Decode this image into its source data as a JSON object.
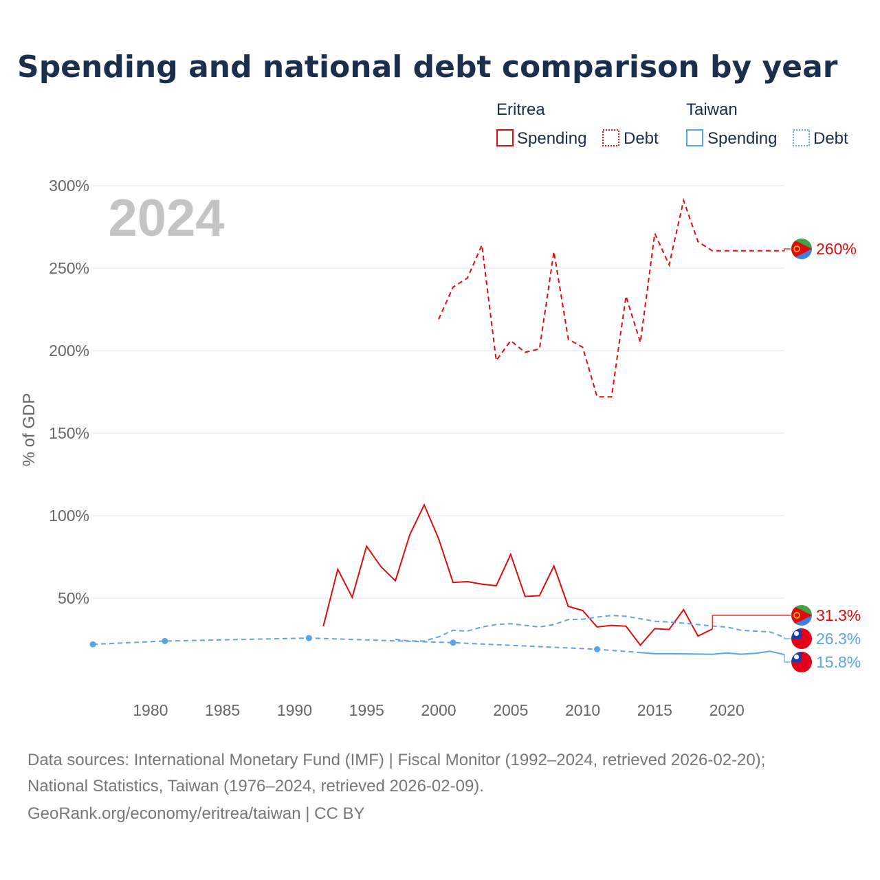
{
  "chart_data": {
    "type": "line",
    "title": "Spending and national debt comparison by year",
    "year_watermark": "2024",
    "ylabel": "% of GDP",
    "xlim": [
      1976,
      2024
    ],
    "ylim": [
      0,
      300
    ],
    "y_ticks": [
      50,
      100,
      150,
      200,
      250,
      300
    ],
    "y_tick_labels": [
      "50%",
      "100%",
      "150%",
      "200%",
      "250%",
      "300%"
    ],
    "x_ticks": [
      1980,
      1985,
      1990,
      1995,
      2000,
      2005,
      2010,
      2015,
      2020
    ],
    "x_tick_labels": [
      "1980",
      "1985",
      "1990",
      "1995",
      "2000",
      "2005",
      "2010",
      "2015",
      "2020"
    ],
    "legend": {
      "groups": [
        {
          "country": "Eritrea",
          "color": "#e00b0b",
          "items": [
            "Spending",
            "Debt"
          ]
        },
        {
          "country": "Taiwan",
          "color": "#5ba4e6",
          "items": [
            "Spending",
            "Debt"
          ]
        }
      ]
    },
    "series": [
      {
        "name": "Eritrea Debt",
        "country": "Eritrea",
        "kind": "Debt",
        "color": "#e00b0b",
        "dash": "dashed",
        "x": [
          2000,
          2001,
          2002,
          2003,
          2004,
          2005,
          2006,
          2007,
          2008,
          2009,
          2010,
          2011,
          2012,
          2013,
          2014,
          2015,
          2016,
          2017,
          2018,
          2019,
          2020,
          2021,
          2022,
          2023,
          2024
        ],
        "values": [
          219,
          238.5,
          244,
          264,
          194,
          206,
          199,
          201,
          260,
          207,
          202,
          172,
          172,
          233,
          205,
          271,
          252,
          291,
          266,
          260.5,
          260.5,
          260.5,
          260.5,
          260.5,
          260.5
        ],
        "end_label": "260%",
        "end_value": 260
      },
      {
        "name": "Eritrea Spending",
        "country": "Eritrea",
        "kind": "Spending",
        "color": "#e00b0b",
        "dash": "solid",
        "x": [
          1992,
          1993,
          1994,
          1995,
          1996,
          1997,
          1998,
          1999,
          2000,
          2001,
          2002,
          2003,
          2004,
          2005,
          2006,
          2007,
          2008,
          2009,
          2010,
          2011,
          2012,
          2013,
          2014,
          2015,
          2016,
          2017,
          2018,
          2019
        ],
        "values": [
          33,
          67.5,
          50.5,
          81.5,
          69,
          60.5,
          88.5,
          106.5,
          86,
          59.5,
          60,
          58.5,
          57.5,
          76.5,
          51,
          51.5,
          69.5,
          45,
          42.5,
          32.5,
          33.5,
          33,
          21.5,
          31.5,
          31,
          43,
          27,
          31.3
        ],
        "end_label": "31.3%",
        "end_value": 31.3
      },
      {
        "name": "Taiwan Debt",
        "country": "Taiwan",
        "kind": "Debt",
        "color": "#5ba4e6",
        "dash": "dashed",
        "x": [
          1997,
          1998,
          1999,
          2000,
          2001,
          2002,
          2003,
          2004,
          2005,
          2006,
          2007,
          2008,
          2009,
          2010,
          2011,
          2012,
          2013,
          2014,
          2015,
          2016,
          2017,
          2018,
          2019,
          2020,
          2021,
          2022,
          2023,
          2024
        ],
        "values": [
          25,
          24,
          24,
          26.5,
          30.5,
          30,
          32.5,
          34,
          34.5,
          33.5,
          32.5,
          34,
          37,
          37.2,
          38.5,
          39.5,
          39,
          37.5,
          36,
          35.5,
          34.8,
          34,
          33,
          32.5,
          30.5,
          30,
          29.5,
          26.3
        ],
        "end_label": "26.3%",
        "end_value": 26.3
      },
      {
        "name": "Taiwan Spending",
        "country": "Taiwan",
        "kind": "Spending",
        "color": "#5ba4e6",
        "dash": "dashed-then-solid",
        "x": [
          1976,
          1981,
          1991,
          2001,
          2011,
          2014,
          2015,
          2016,
          2017,
          2018,
          2019,
          2020,
          2021,
          2022,
          2023,
          2024
        ],
        "values": [
          22,
          24,
          25.8,
          23,
          19,
          17,
          16.3,
          16.3,
          16.2,
          16.1,
          16,
          16.8,
          16,
          16.6,
          17.8,
          15.8
        ],
        "markers_at": [
          1976,
          1981,
          1991,
          2001,
          2011
        ],
        "end_label": "15.8%",
        "end_value": 15.8
      }
    ]
  },
  "footer": {
    "line1": "Data sources: International Monetary Fund (IMF) | Fiscal Monitor (1992–2024, retrieved 2026-02-20);",
    "line2": "National Statistics, Taiwan (1976–2024, retrieved 2026-02-09).",
    "line3": "GeoRank.org/economy/eritrea/taiwan | CC BY"
  }
}
